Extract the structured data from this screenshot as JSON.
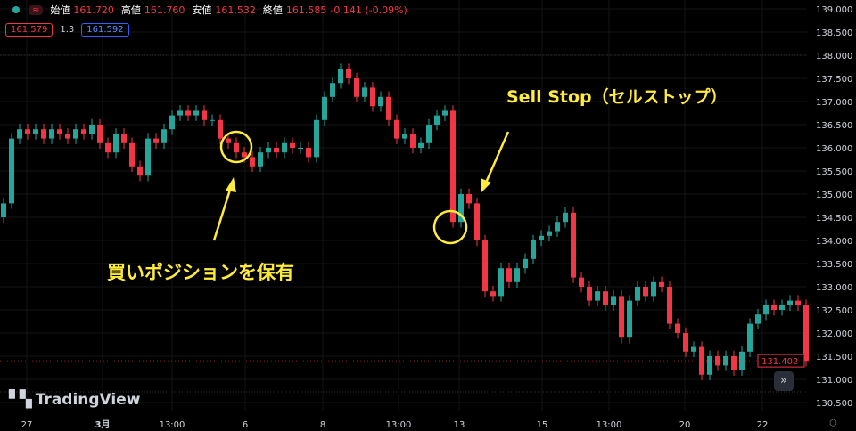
{
  "header": {
    "open_label": "始値",
    "open": "161.720",
    "high_label": "高値",
    "high": "161.760",
    "low_label": "安値",
    "low": "161.532",
    "close_label": "終値",
    "close": "161.585",
    "change": "-0.141 (-0.09%)",
    "wave_icon": "≈",
    "sell_price": "161.579",
    "spread": "1.3",
    "buy_price": "161.592"
  },
  "annotations": {
    "sell_stop": "Sell Stop（セルストップ）",
    "buy_position": "買いポジションを保有"
  },
  "logo": "TradingView",
  "forward_icon": "»",
  "colors": {
    "up": "#26a69a",
    "down": "#f23645",
    "annotation": "#ffeb3b"
  },
  "chart_data": {
    "type": "candlestick",
    "y_ticks": [
      "139.000",
      "138.500",
      "138.000",
      "137.500",
      "137.000",
      "136.500",
      "136.000",
      "135.500",
      "135.000",
      "134.500",
      "134.000",
      "133.500",
      "133.000",
      "132.500",
      "132.000",
      "131.500",
      "131.000",
      "130.500"
    ],
    "ylim": [
      130.5,
      139.0
    ],
    "x_ticks": [
      "27",
      "3月",
      "13:00",
      "6",
      "8",
      "13:00",
      "13",
      "15",
      "13:00",
      "20",
      "22"
    ],
    "current_price": "131.402",
    "grid": true,
    "closes": [
      134.8,
      136.2,
      136.4,
      136.3,
      136.4,
      136.2,
      136.4,
      136.3,
      136.2,
      136.4,
      136.3,
      136.5,
      136.1,
      135.9,
      136.3,
      136.1,
      135.6,
      135.4,
      136.2,
      136.1,
      136.4,
      136.7,
      136.8,
      136.7,
      136.8,
      136.6,
      136.6,
      136.2,
      136.1,
      135.9,
      135.8,
      135.6,
      135.9,
      136.0,
      135.9,
      136.1,
      136.0,
      136.0,
      135.8,
      136.6,
      137.1,
      137.4,
      137.7,
      137.5,
      137.1,
      137.3,
      136.9,
      137.1,
      136.6,
      136.2,
      136.3,
      136.0,
      136.1,
      136.5,
      136.7,
      136.8,
      134.4,
      135.0,
      134.8,
      134.0,
      132.9,
      132.8,
      133.4,
      133.1,
      133.4,
      133.6,
      134.0,
      134.1,
      134.2,
      134.4,
      134.6,
      133.2,
      133.0,
      132.7,
      132.9,
      132.6,
      132.8,
      131.9,
      132.7,
      133.0,
      132.8,
      133.1,
      133.0,
      132.2,
      132.0,
      131.6,
      131.7,
      131.1,
      131.5,
      131.3,
      131.5,
      131.2,
      131.6,
      132.2,
      132.4,
      132.6,
      132.5,
      132.6,
      132.7,
      132.6,
      131.4
    ]
  }
}
